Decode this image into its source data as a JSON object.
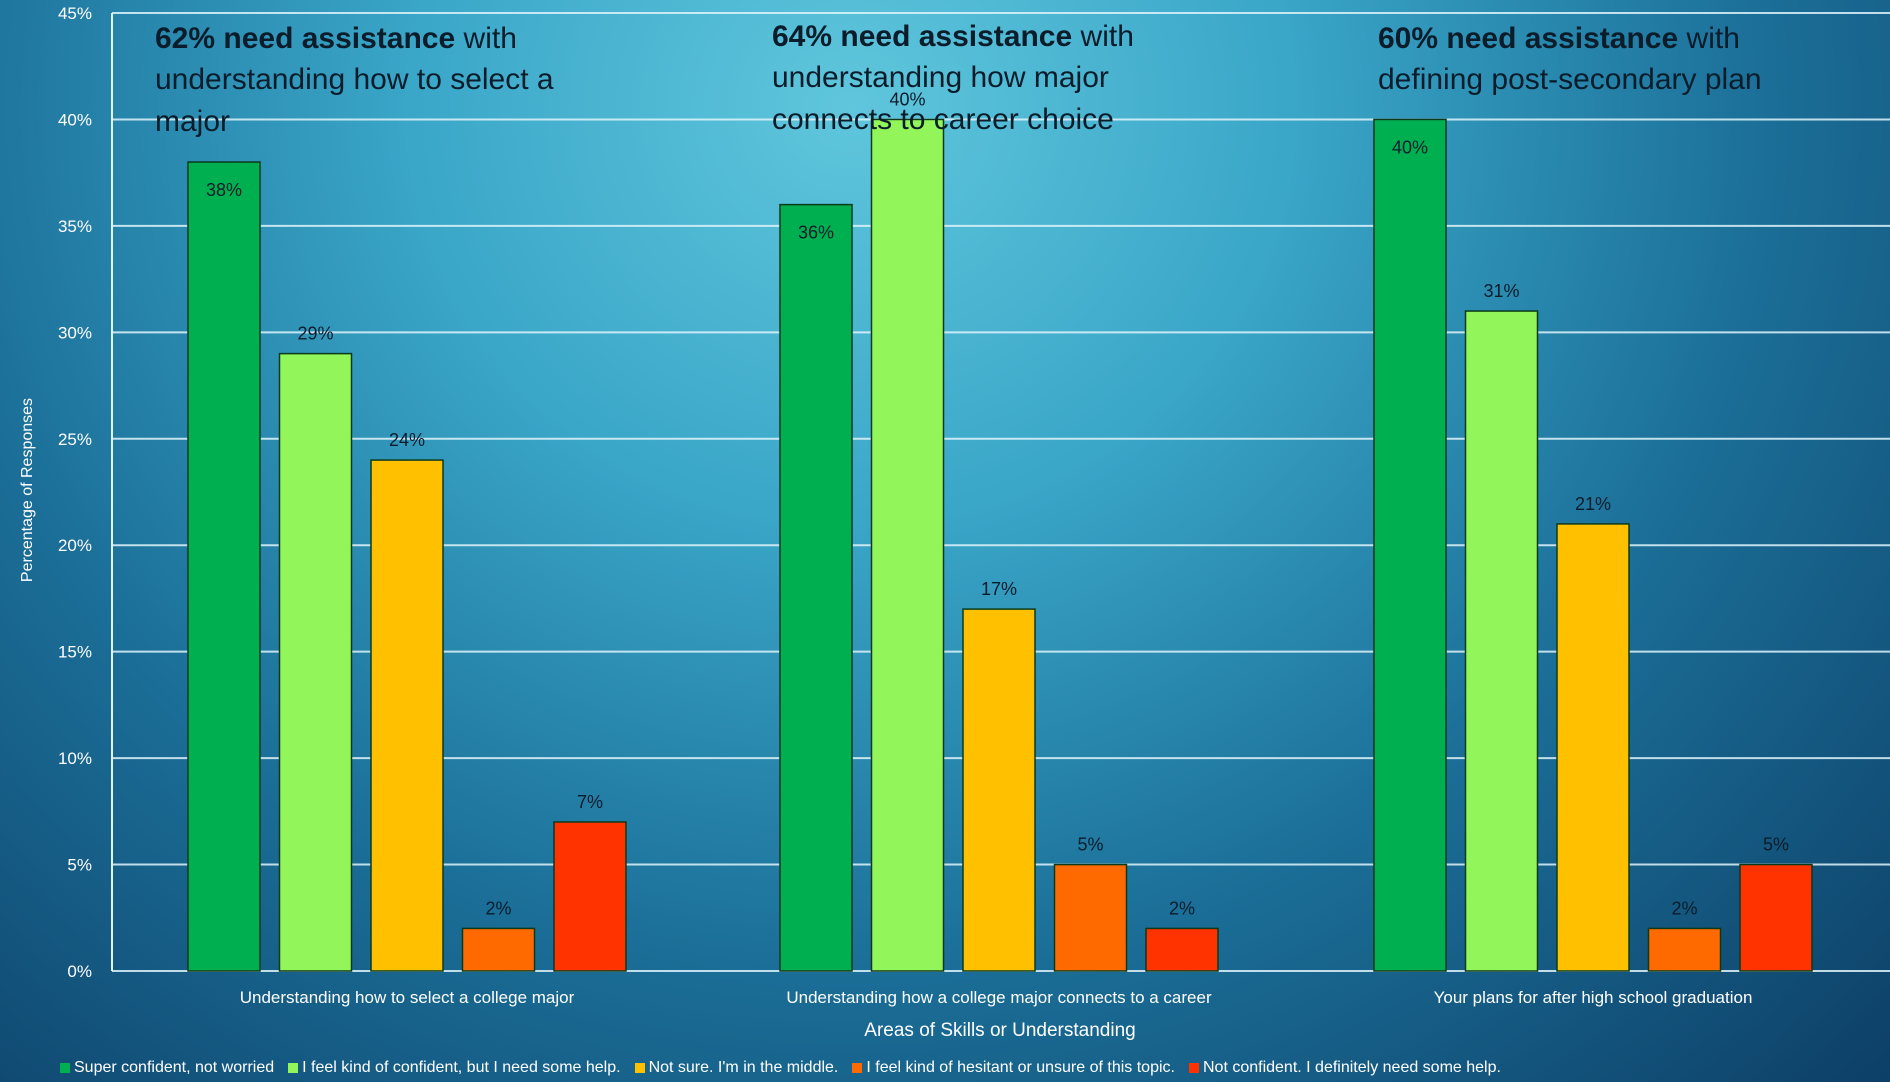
{
  "annotations": [
    {
      "bold": "62% need assistance",
      "rest": " with understanding how to select a major"
    },
    {
      "bold": "64% need assistance",
      "rest": " with understanding how major connects to career choice"
    },
    {
      "bold": "60% need assistance",
      "rest": " with defining post-secondary plan"
    }
  ],
  "chart_data": {
    "type": "bar",
    "title": "",
    "xlabel": "Areas of Skills or Understanding",
    "ylabel": "Percentage of Responses",
    "ylim": [
      0,
      45
    ],
    "yticks": [
      "0%",
      "5%",
      "10%",
      "15%",
      "20%",
      "25%",
      "30%",
      "35%",
      "40%",
      "45%"
    ],
    "grid": true,
    "legend_position": "bottom",
    "categories": [
      "Understanding how to select a college major",
      "Understanding how a college major connects to a career",
      "Your plans for after high school graduation"
    ],
    "series": [
      {
        "name": "Super confident, not worried",
        "color": "#00b050",
        "values": [
          38,
          36,
          40
        ],
        "labels": [
          "38%",
          "36%",
          "40%"
        ]
      },
      {
        "name": "I feel kind of confident, but I need some help.",
        "color": "#92f55a",
        "values": [
          29,
          40,
          31
        ],
        "labels": [
          "29%",
          "40%",
          "31%"
        ]
      },
      {
        "name": "Not sure. I'm in the middle.",
        "color": "#ffc000",
        "values": [
          24,
          17,
          21
        ],
        "labels": [
          "24%",
          "17%",
          "21%"
        ]
      },
      {
        "name": "I feel kind of hesitant or unsure of this topic.",
        "color": "#ff6a00",
        "values": [
          2,
          5,
          2
        ],
        "labels": [
          "2%",
          "5%",
          "2%"
        ]
      },
      {
        "name": "Not confident. I definitely need some help.",
        "color": "#ff3300",
        "values": [
          7,
          2,
          5
        ],
        "labels": [
          "7%",
          "2%",
          "5%"
        ]
      }
    ]
  }
}
